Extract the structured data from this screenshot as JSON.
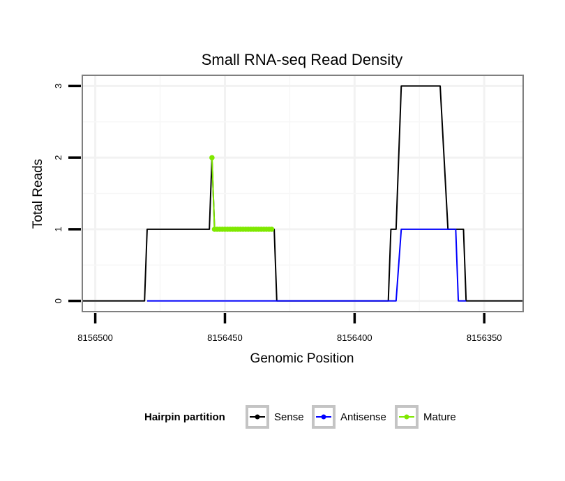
{
  "chart_data": {
    "type": "line",
    "title": "Small RNA-seq Read Density",
    "xlabel": "Genomic Position",
    "ylabel": "Total Reads",
    "x_reversed": true,
    "xlim": [
      8156505,
      8156335
    ],
    "ylim": [
      -0.15,
      3.15
    ],
    "x_ticks": [
      8156500,
      8156450,
      8156400,
      8156350
    ],
    "x_tick_labels": [
      "8156500",
      "8156450",
      "8156400",
      "8156350"
    ],
    "y_ticks": [
      0,
      1,
      2,
      3
    ],
    "y_tick_labels": [
      "0",
      "1",
      "2",
      "3"
    ],
    "grid": true,
    "legend": {
      "title": "Hairpin partition",
      "position": "bottom"
    },
    "series": [
      {
        "name": "Sense",
        "color": "#000000",
        "points": [
          [
            8156505,
            0
          ],
          [
            8156481,
            0
          ],
          [
            8156480,
            1
          ],
          [
            8156456,
            1
          ],
          [
            8156455,
            2
          ],
          [
            8156454,
            1
          ],
          [
            8156431,
            1
          ],
          [
            8156430,
            0
          ],
          [
            8156387,
            0
          ],
          [
            8156386,
            1
          ],
          [
            8156384,
            1
          ],
          [
            8156382,
            3
          ],
          [
            8156367,
            3
          ],
          [
            8156364,
            1
          ],
          [
            8156358,
            1
          ],
          [
            8156357,
            0
          ],
          [
            8156335,
            0
          ]
        ]
      },
      {
        "name": "Antisense",
        "color": "#0000ff",
        "points": [
          [
            8156480,
            0
          ],
          [
            8156384,
            0
          ],
          [
            8156382,
            1
          ],
          [
            8156361,
            1
          ],
          [
            8156360,
            0
          ],
          [
            8156357,
            0
          ]
        ]
      },
      {
        "name": "Mature",
        "color": "#7fe800",
        "points": [
          [
            8156455,
            2
          ],
          [
            8156454,
            1
          ],
          [
            8156453,
            1
          ],
          [
            8156452,
            1
          ],
          [
            8156451,
            1
          ],
          [
            8156450,
            1
          ],
          [
            8156449,
            1
          ],
          [
            8156448,
            1
          ],
          [
            8156447,
            1
          ],
          [
            8156446,
            1
          ],
          [
            8156445,
            1
          ],
          [
            8156444,
            1
          ],
          [
            8156443,
            1
          ],
          [
            8156442,
            1
          ],
          [
            8156441,
            1
          ],
          [
            8156440,
            1
          ],
          [
            8156439,
            1
          ],
          [
            8156438,
            1
          ],
          [
            8156437,
            1
          ],
          [
            8156436,
            1
          ],
          [
            8156435,
            1
          ],
          [
            8156434,
            1
          ],
          [
            8156433,
            1
          ],
          [
            8156432,
            1
          ]
        ]
      }
    ]
  }
}
